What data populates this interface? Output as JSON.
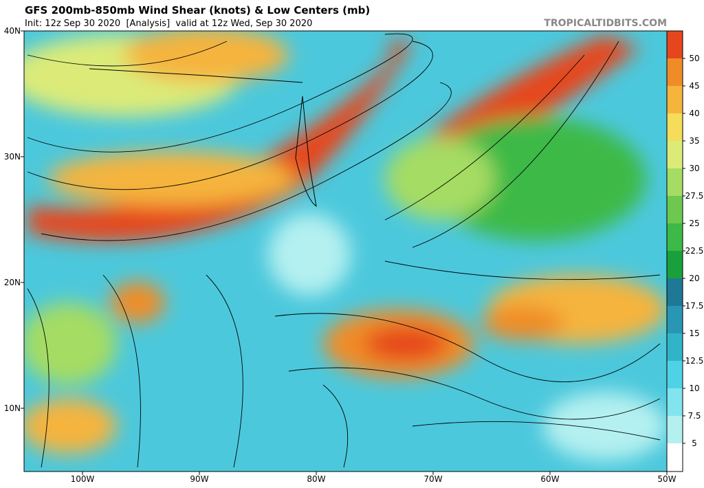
{
  "header": {
    "title": "GFS 200mb-850mb Wind Shear (knots) & Low Centers (mb)",
    "subtitle": "Init: 12z Sep 30 2020  [Analysis]  valid at 12z Wed, Sep 30 2020",
    "credit": "TROPICALTIDBITS.COM"
  },
  "map": {
    "lat_labels": [
      "40N",
      "30N",
      "20N",
      "10N"
    ],
    "lon_labels": [
      "100W",
      "90W",
      "80W",
      "70W",
      "60W",
      "50W"
    ]
  },
  "colorbar": {
    "ticks": [
      5,
      7.5,
      10,
      12.5,
      15,
      17.5,
      20,
      22.5,
      25,
      27.5,
      30,
      35,
      40,
      45,
      50
    ],
    "colors": [
      "#ffffff",
      "#b4f0f0",
      "#82e4ee",
      "#50d2e6",
      "#32b4c8",
      "#2896b4",
      "#1e7896",
      "#19a03c",
      "#3cb946",
      "#6ec850",
      "#a5dc64",
      "#dceb78",
      "#f5dc5a",
      "#f5b43c",
      "#f08c28",
      "#e6461e"
    ]
  }
}
